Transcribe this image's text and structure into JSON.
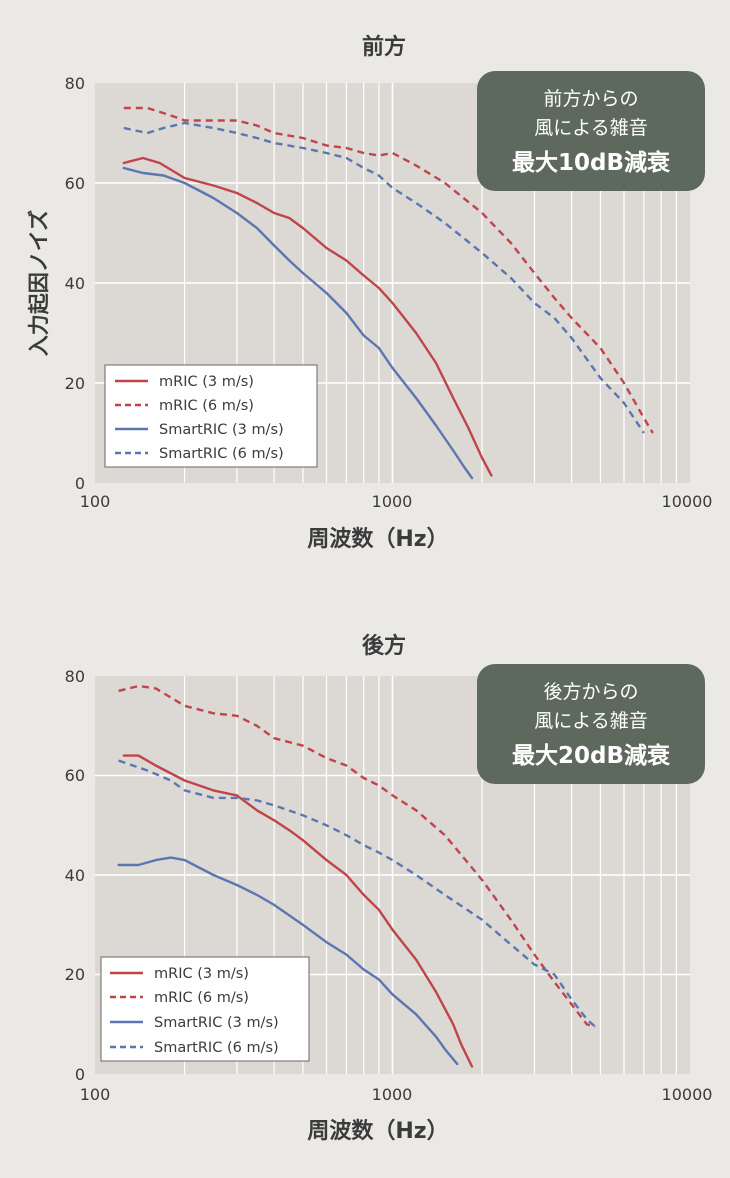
{
  "ylabel": "入力起因ノイズ",
  "legend": [
    {
      "label": "mRIC (3 m/s)",
      "color": "#c0444b",
      "dash": false
    },
    {
      "label": "mRIC (6 m/s)",
      "color": "#c0444b",
      "dash": true
    },
    {
      "label": "SmartRIC (3 m/s)",
      "color": "#5b76b0",
      "dash": false
    },
    {
      "label": "SmartRIC (6 m/s)",
      "color": "#5b76b0",
      "dash": true
    }
  ],
  "colors": {
    "mric": "#c0444b",
    "smartric": "#5b76b0",
    "badge": "#5d695c",
    "plot_bg": "#dcd9d4",
    "grid": "#ffffff"
  },
  "chart_data": [
    {
      "type": "line",
      "title": "前方",
      "xlabel": "周波数（Hz）",
      "ylabel": "入力起因ノイズ",
      "x_scale": "log",
      "xlim": [
        100,
        10000
      ],
      "ylim": [
        0,
        80
      ],
      "xticks": [
        "100",
        "1000",
        "10000"
      ],
      "yticks": [
        "0",
        "20",
        "40",
        "60",
        "80"
      ],
      "grid": true,
      "legend_position": "bottom-left",
      "annotation": {
        "line1": "前方からの",
        "line2": "風による雑音",
        "line3": "最大10dB減衰"
      },
      "series": [
        {
          "name": "mRIC (3 m/s)",
          "style": "solid",
          "color": "#c0444b",
          "points": [
            [
              125,
              64
            ],
            [
              145,
              65
            ],
            [
              165,
              64
            ],
            [
              200,
              61
            ],
            [
              250,
              59.5
            ],
            [
              300,
              58
            ],
            [
              350,
              56
            ],
            [
              400,
              54
            ],
            [
              450,
              53
            ],
            [
              500,
              51
            ],
            [
              600,
              47
            ],
            [
              700,
              44.5
            ],
            [
              800,
              41.5
            ],
            [
              900,
              39
            ],
            [
              1000,
              36
            ],
            [
              1200,
              30
            ],
            [
              1400,
              24
            ],
            [
              1600,
              17
            ],
            [
              1800,
              11
            ],
            [
              2000,
              5
            ],
            [
              2150,
              1.5
            ]
          ]
        },
        {
          "name": "mRIC (6 m/s)",
          "style": "dashed",
          "color": "#c0444b",
          "points": [
            [
              125,
              75
            ],
            [
              150,
              75
            ],
            [
              180,
              73.5
            ],
            [
              200,
              72.5
            ],
            [
              250,
              72.5
            ],
            [
              300,
              72.5
            ],
            [
              350,
              71.5
            ],
            [
              400,
              70
            ],
            [
              500,
              69
            ],
            [
              600,
              67.5
            ],
            [
              700,
              67
            ],
            [
              800,
              66
            ],
            [
              900,
              65.5
            ],
            [
              1000,
              66
            ],
            [
              1200,
              63.5
            ],
            [
              1500,
              60
            ],
            [
              2000,
              54
            ],
            [
              2500,
              48
            ],
            [
              3000,
              42
            ],
            [
              3500,
              37
            ],
            [
              4000,
              33
            ],
            [
              5000,
              27
            ],
            [
              6000,
              20
            ],
            [
              7000,
              13
            ],
            [
              7500,
              10
            ]
          ]
        },
        {
          "name": "SmartRIC (3 m/s)",
          "style": "solid",
          "color": "#5b76b0",
          "points": [
            [
              125,
              63
            ],
            [
              145,
              62
            ],
            [
              170,
              61.5
            ],
            [
              200,
              60
            ],
            [
              250,
              57
            ],
            [
              300,
              54
            ],
            [
              350,
              51
            ],
            [
              400,
              47.5
            ],
            [
              450,
              44.5
            ],
            [
              500,
              42
            ],
            [
              600,
              38
            ],
            [
              700,
              34
            ],
            [
              800,
              29.5
            ],
            [
              900,
              27
            ],
            [
              1000,
              23
            ],
            [
              1200,
              17
            ],
            [
              1400,
              11.5
            ],
            [
              1600,
              6.5
            ],
            [
              1750,
              3
            ],
            [
              1850,
              1
            ]
          ]
        },
        {
          "name": "SmartRIC (6 m/s)",
          "style": "dashed",
          "color": "#5b76b0",
          "points": [
            [
              125,
              71
            ],
            [
              150,
              70
            ],
            [
              170,
              71
            ],
            [
              200,
              72
            ],
            [
              250,
              71
            ],
            [
              300,
              70
            ],
            [
              350,
              69
            ],
            [
              400,
              68
            ],
            [
              500,
              67
            ],
            [
              600,
              66
            ],
            [
              700,
              65
            ],
            [
              800,
              63
            ],
            [
              900,
              61.5
            ],
            [
              1000,
              59
            ],
            [
              1200,
              56
            ],
            [
              1500,
              52
            ],
            [
              2000,
              46
            ],
            [
              2500,
              41
            ],
            [
              3000,
              36
            ],
            [
              3500,
              33
            ],
            [
              4000,
              29
            ],
            [
              5000,
              21
            ],
            [
              6000,
              16
            ],
            [
              7000,
              10
            ]
          ]
        }
      ]
    },
    {
      "type": "line",
      "title": "後方",
      "xlabel": "周波数（Hz）",
      "x_scale": "log",
      "xlim": [
        100,
        10000
      ],
      "ylim": [
        0,
        80
      ],
      "xticks": [
        "100",
        "1000",
        "10000"
      ],
      "yticks": [
        "0",
        "20",
        "40",
        "60",
        "80"
      ],
      "grid": true,
      "legend_position": "bottom-left",
      "annotation": {
        "line1": "後方からの",
        "line2": "風による雑音",
        "line3": "最大20dB減衰"
      },
      "series": [
        {
          "name": "mRIC (3 m/s)",
          "style": "solid",
          "color": "#c0444b",
          "points": [
            [
              125,
              64
            ],
            [
              140,
              64
            ],
            [
              160,
              62
            ],
            [
              200,
              59
            ],
            [
              250,
              57
            ],
            [
              300,
              56
            ],
            [
              350,
              53
            ],
            [
              400,
              51
            ],
            [
              450,
              49
            ],
            [
              500,
              47
            ],
            [
              600,
              43
            ],
            [
              700,
              40
            ],
            [
              800,
              36
            ],
            [
              900,
              33
            ],
            [
              1000,
              29
            ],
            [
              1200,
              23
            ],
            [
              1400,
              16.5
            ],
            [
              1600,
              10
            ],
            [
              1700,
              6
            ],
            [
              1850,
              1.5
            ]
          ]
        },
        {
          "name": "mRIC (6 m/s)",
          "style": "dashed",
          "color": "#c0444b",
          "points": [
            [
              120,
              77
            ],
            [
              140,
              78
            ],
            [
              160,
              77.5
            ],
            [
              200,
              74
            ],
            [
              250,
              72.5
            ],
            [
              300,
              72
            ],
            [
              350,
              70
            ],
            [
              400,
              67.5
            ],
            [
              500,
              66
            ],
            [
              600,
              63.5
            ],
            [
              700,
              62
            ],
            [
              800,
              59.5
            ],
            [
              900,
              58
            ],
            [
              1000,
              56
            ],
            [
              1200,
              53
            ],
            [
              1500,
              48
            ],
            [
              2000,
              39
            ],
            [
              2500,
              31
            ],
            [
              3000,
              24
            ],
            [
              3500,
              18.5
            ],
            [
              4000,
              14
            ],
            [
              4500,
              10
            ],
            [
              4800,
              9.5
            ]
          ]
        },
        {
          "name": "SmartRIC (3 m/s)",
          "style": "solid",
          "color": "#5b76b0",
          "points": [
            [
              120,
              42
            ],
            [
              140,
              42
            ],
            [
              160,
              43
            ],
            [
              180,
              43.5
            ],
            [
              200,
              43
            ],
            [
              250,
              40
            ],
            [
              300,
              38
            ],
            [
              350,
              36
            ],
            [
              400,
              34
            ],
            [
              500,
              30
            ],
            [
              600,
              26.5
            ],
            [
              700,
              24
            ],
            [
              800,
              21
            ],
            [
              900,
              19
            ],
            [
              1000,
              16
            ],
            [
              1200,
              12
            ],
            [
              1400,
              7.5
            ],
            [
              1500,
              5
            ],
            [
              1650,
              2
            ]
          ]
        },
        {
          "name": "SmartRIC (6 m/s)",
          "style": "dashed",
          "color": "#5b76b0",
          "points": [
            [
              120,
              63
            ],
            [
              150,
              61
            ],
            [
              180,
              59
            ],
            [
              200,
              57
            ],
            [
              250,
              55.5
            ],
            [
              300,
              55.5
            ],
            [
              350,
              55
            ],
            [
              400,
              54
            ],
            [
              500,
              52
            ],
            [
              600,
              50
            ],
            [
              700,
              48
            ],
            [
              800,
              46
            ],
            [
              900,
              44.5
            ],
            [
              1000,
              43
            ],
            [
              1200,
              40
            ],
            [
              1500,
              36
            ],
            [
              2000,
              31
            ],
            [
              2500,
              26
            ],
            [
              3000,
              22
            ],
            [
              3500,
              20
            ],
            [
              4000,
              15
            ],
            [
              4500,
              11
            ],
            [
              4800,
              9.5
            ]
          ]
        }
      ]
    }
  ]
}
